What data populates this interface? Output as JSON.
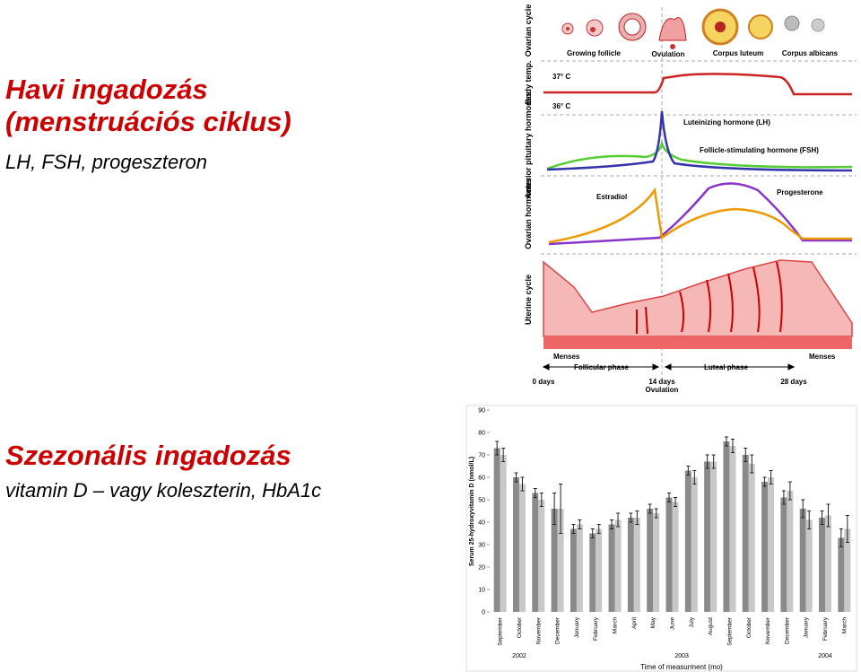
{
  "slide": {
    "title_lines": [
      "Havi ingadozás",
      "(menstruációs ciklus)"
    ],
    "subtitle": "LH, FSH, progeszteron",
    "title2": "Szezonális ingadozás",
    "subtitle2": "vitamin D – vagy koleszterin, HbA1c"
  },
  "cycle_diagram": {
    "rows": [
      "Ovarian cycle",
      "Body temp.",
      "Anterior pituitary hormones",
      "Ovarian hormones",
      "Uterine cycle"
    ],
    "stages": [
      "Growing follicle",
      "Ovulation",
      "Corpus luteum",
      "Corpus albicans"
    ],
    "temps": [
      "37° C",
      "36° C"
    ],
    "hormones": [
      "Luteinizing hormone (LH)",
      "Follicle-stimulating hormone (FSH)",
      "Estradiol",
      "Progesterone"
    ],
    "menses": [
      "Menses",
      "Menses"
    ],
    "phases": [
      "Follicular phase",
      "Luteal phase"
    ],
    "days": [
      "0 days",
      "14 days",
      "28 days"
    ],
    "ovulation": "Ovulation"
  },
  "chart_data": {
    "type": "bar",
    "ylabel": "Serum 25-hydroxyvitamin D (nmol/L)",
    "xlabel": "Time of measurment (mo)",
    "categories": [
      "September",
      "October",
      "November",
      "December",
      "January",
      "February",
      "March",
      "April",
      "May",
      "June",
      "July",
      "August",
      "September",
      "October",
      "November",
      "December",
      "January",
      "February",
      "March"
    ],
    "years": [
      "2002",
      "2003",
      "2004"
    ],
    "series": [
      {
        "color": "#8a8a8a",
        "values": [
          73,
          60,
          53,
          46,
          37,
          35,
          39,
          42,
          46,
          51,
          63,
          67,
          76,
          70,
          58,
          51,
          46,
          42,
          33
        ],
        "errors": [
          3,
          2,
          2,
          7,
          2,
          2,
          2,
          2,
          2,
          2,
          2,
          3,
          2,
          3,
          2,
          3,
          4,
          3,
          4
        ]
      },
      {
        "color": "#c8c8c8",
        "values": [
          70,
          57,
          50,
          46,
          39,
          37,
          41,
          42,
          44,
          49,
          60,
          67,
          74,
          66,
          60,
          54,
          41,
          43,
          37
        ],
        "errors": [
          3,
          3,
          3,
          11,
          2,
          2,
          3,
          3,
          2,
          2,
          3,
          3,
          3,
          4,
          3,
          4,
          4,
          5,
          6
        ]
      }
    ],
    "ylim": [
      0,
      90
    ],
    "yticks": [
      0,
      10,
      20,
      30,
      40,
      50,
      60,
      70,
      80,
      90
    ]
  }
}
